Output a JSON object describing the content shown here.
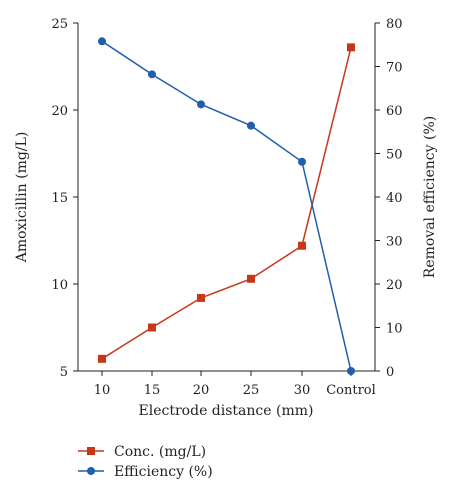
{
  "chart_data": {
    "type": "line",
    "categories": [
      "10",
      "15",
      "20",
      "25",
      "30",
      "Control"
    ],
    "xlabel": "Electrode distance (mm)",
    "ylabel_left": "Amoxicillin (mg/L)",
    "ylabel_right": "Removal efficiency (%)",
    "ylim_left": [
      5,
      25
    ],
    "yticks_left": [
      5,
      10,
      15,
      20,
      25
    ],
    "ylim_right": [
      0,
      80
    ],
    "yticks_right": [
      0,
      10,
      20,
      30,
      40,
      50,
      60,
      70,
      80
    ],
    "grid": false,
    "legend_position": "bottom-left",
    "series": [
      {
        "name": "Conc. (mg/L)",
        "axis": "left",
        "marker": "square",
        "color": "#c8371a",
        "values": [
          5.7,
          7.5,
          9.2,
          10.3,
          12.2,
          23.6
        ]
      },
      {
        "name": "Efficiency (%)",
        "axis": "right",
        "marker": "circle",
        "color": "#1f5fae",
        "values": [
          75.8,
          68.2,
          61.3,
          56.4,
          48.1,
          0
        ]
      }
    ]
  }
}
